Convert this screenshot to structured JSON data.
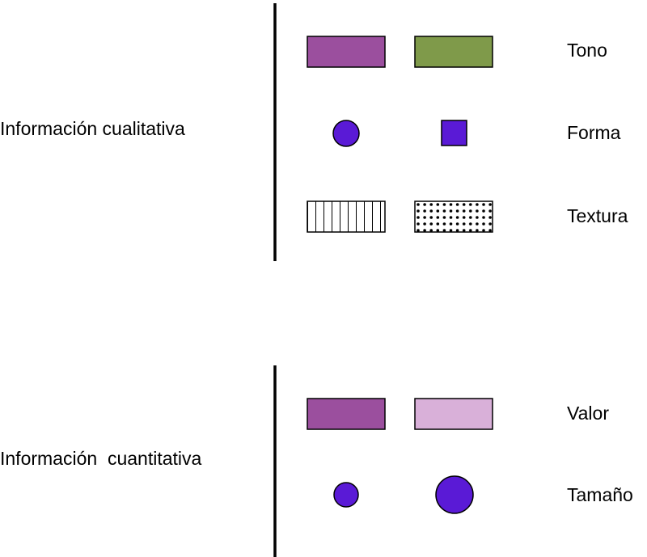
{
  "groups": [
    {
      "label": "Información cualitativa",
      "rows": [
        {
          "label": "Tono"
        },
        {
          "label": "Forma"
        },
        {
          "label": "Textura"
        }
      ]
    },
    {
      "label": "Información  cuantitativa",
      "rows": [
        {
          "label": "Valor"
        },
        {
          "label": "Tamaño"
        }
      ]
    }
  ],
  "colors": {
    "purple": "#9b4f9e",
    "green": "#7f9a4a",
    "violet": "#5a1ad6",
    "light_purple": "#d9b0d9",
    "stroke": "#000000",
    "divider": "#000000"
  },
  "icons": {
    "forma_a": "circle",
    "forma_b": "square",
    "textura_a": "vertical-stripes",
    "textura_b": "dot-grid",
    "tamano_a": "small-circle",
    "tamano_b": "large-circle"
  }
}
